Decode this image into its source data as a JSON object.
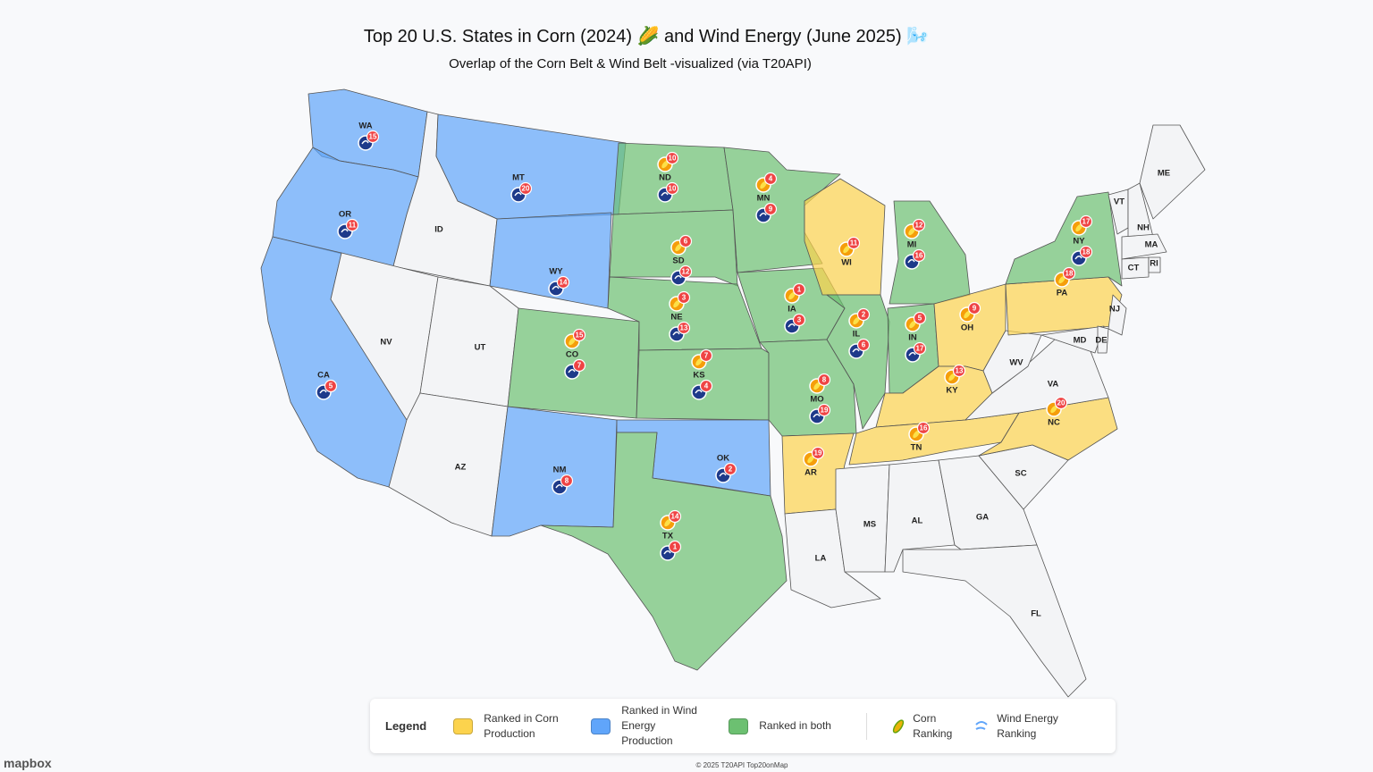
{
  "title": "Top 20 U.S. States in Corn (2024) 🌽 and Wind Energy (June 2025) 🌬️",
  "subtitle": "Overlap of the Corn Belt & Wind Belt -visualized (via T20API)",
  "states": [
    {
      "abbr": "WA",
      "wind": 15
    },
    {
      "abbr": "OR",
      "wind": 11
    },
    {
      "abbr": "CA",
      "wind": 5
    },
    {
      "abbr": "ID"
    },
    {
      "abbr": "NV"
    },
    {
      "abbr": "MT",
      "wind": 20
    },
    {
      "abbr": "WY",
      "wind": 14
    },
    {
      "abbr": "UT"
    },
    {
      "abbr": "AZ"
    },
    {
      "abbr": "CO",
      "corn": 15,
      "wind": 7
    },
    {
      "abbr": "NM",
      "wind": 8
    },
    {
      "abbr": "ND",
      "corn": 10,
      "wind": 10
    },
    {
      "abbr": "SD",
      "corn": 6,
      "wind": 12
    },
    {
      "abbr": "NE",
      "corn": 3,
      "wind": 13
    },
    {
      "abbr": "KS",
      "corn": 7,
      "wind": 4
    },
    {
      "abbr": "OK",
      "wind": 2
    },
    {
      "abbr": "TX",
      "corn": 14,
      "wind": 1
    },
    {
      "abbr": "MN",
      "corn": 4,
      "wind": 9
    },
    {
      "abbr": "IA",
      "corn": 1,
      "wind": 3
    },
    {
      "abbr": "MO",
      "corn": 8,
      "wind": 19
    },
    {
      "abbr": "AR",
      "corn": 19
    },
    {
      "abbr": "LA"
    },
    {
      "abbr": "WI",
      "corn": 11
    },
    {
      "abbr": "IL",
      "corn": 2,
      "wind": 6
    },
    {
      "abbr": "IN",
      "corn": 5,
      "wind": 17
    },
    {
      "abbr": "MI",
      "corn": 12,
      "wind": 16
    },
    {
      "abbr": "OH",
      "corn": 9
    },
    {
      "abbr": "KY",
      "corn": 13
    },
    {
      "abbr": "TN",
      "corn": 16
    },
    {
      "abbr": "MS"
    },
    {
      "abbr": "AL"
    },
    {
      "abbr": "GA"
    },
    {
      "abbr": "FL"
    },
    {
      "abbr": "SC"
    },
    {
      "abbr": "NC",
      "corn": 20
    },
    {
      "abbr": "VA"
    },
    {
      "abbr": "WV"
    },
    {
      "abbr": "PA",
      "corn": 18
    },
    {
      "abbr": "NY",
      "corn": 17,
      "wind": 18
    },
    {
      "abbr": "NJ"
    },
    {
      "abbr": "MD"
    },
    {
      "abbr": "DE"
    },
    {
      "abbr": "VT"
    },
    {
      "abbr": "NH"
    },
    {
      "abbr": "ME"
    },
    {
      "abbr": "MA"
    },
    {
      "abbr": "CT"
    },
    {
      "abbr": "RI"
    }
  ],
  "legend": {
    "title": "Legend",
    "items": [
      {
        "label": "Ranked in Corn Production",
        "color": "#fcd34d"
      },
      {
        "label": "Ranked in Wind Energy Production",
        "color": "#60a5fa"
      },
      {
        "label": "Ranked in both",
        "color": "#6cc071"
      }
    ],
    "icons": [
      "Corn Ranking",
      "Wind Energy Ranking"
    ]
  },
  "footer": "© 2025 T20API Top20onMap",
  "logo": "mapbox"
}
